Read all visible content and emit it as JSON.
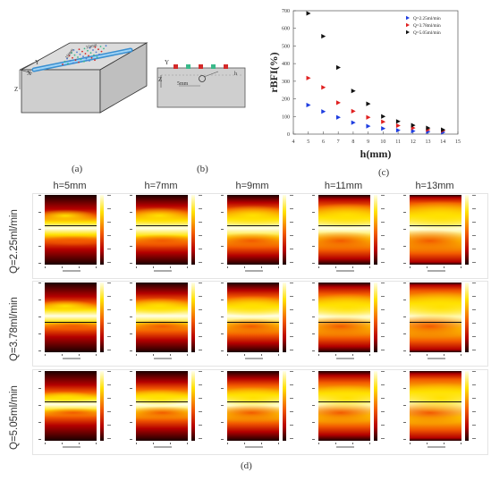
{
  "captions": {
    "a": "(a)",
    "b": "(b)",
    "c": "(c)",
    "d": "(d)"
  },
  "diagram_a": {
    "axis_x": "X",
    "axis_y": "Y",
    "axis_z": "Z",
    "dim1": "10mm",
    "dim2": "10mm"
  },
  "diagram_b": {
    "axis_y": "Y",
    "axis_z": "Z",
    "label_h": "h",
    "depth": "5mm"
  },
  "grid": {
    "columns": [
      "h=5mm",
      "h=7mm",
      "h=9mm",
      "h=11mm",
      "h=13mm"
    ],
    "rows": [
      "Q=2.25ml/min",
      "Q=3.78ml/min",
      "Q=5.05ml/min"
    ]
  },
  "colors": {
    "hot_dark": "#1a0000",
    "hot_red": "#b40000",
    "hot_orange": "#f25a00",
    "hot_yellow": "#ffe100",
    "hot_white": "#ffffe8"
  },
  "chart_data": {
    "type": "scatter",
    "xlabel": "h(mm)",
    "ylabel": "rBFI(%)",
    "xlim": [
      4,
      15
    ],
    "ylim": [
      0,
      700
    ],
    "xticks": [
      4,
      5,
      6,
      7,
      8,
      9,
      10,
      11,
      12,
      13,
      14,
      15
    ],
    "yticks": [
      0,
      100,
      200,
      300,
      400,
      500,
      600,
      700
    ],
    "legend_position": "top-right",
    "series": [
      {
        "name": "Q=2.25ml/min",
        "color": "#1f3ee0",
        "x": [
          5,
          6,
          7,
          8,
          9,
          10,
          11,
          12,
          13,
          14
        ],
        "y": [
          165,
          128,
          95,
          65,
          45,
          32,
          22,
          17,
          13,
          10
        ]
      },
      {
        "name": "Q=3.78ml/min",
        "color": "#e02020",
        "x": [
          5,
          6,
          7,
          8,
          9,
          10,
          11,
          12,
          13,
          14
        ],
        "y": [
          318,
          265,
          178,
          130,
          95,
          70,
          48,
          35,
          25,
          20
        ]
      },
      {
        "name": "Q=5.05ml/min",
        "color": "#111111",
        "x": [
          5,
          6,
          7,
          8,
          9,
          10,
          11,
          12,
          13,
          14
        ],
        "y": [
          685,
          555,
          378,
          245,
          172,
          100,
          72,
          50,
          35,
          25
        ]
      }
    ]
  }
}
